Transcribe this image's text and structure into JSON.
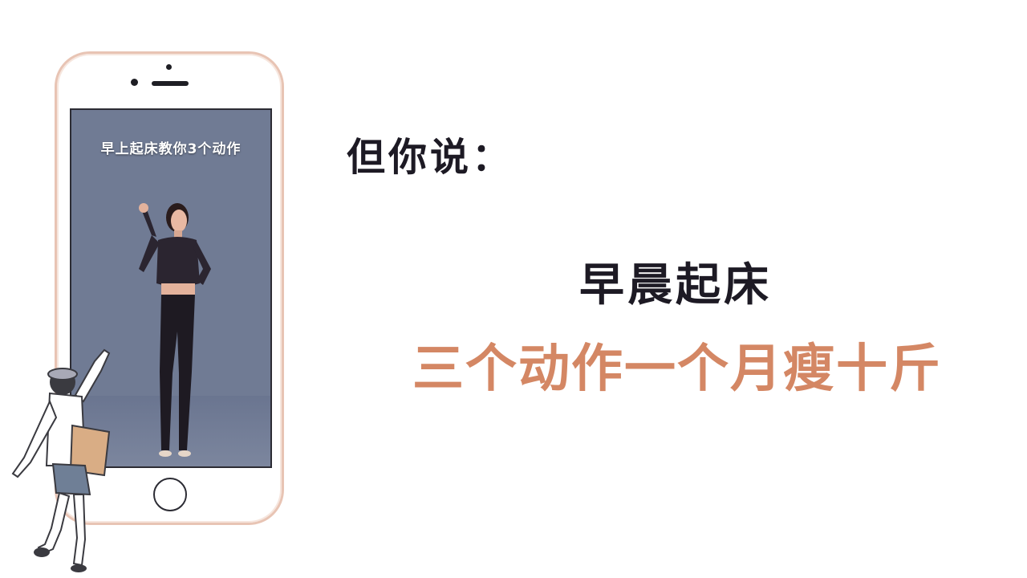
{
  "phone": {
    "screen_caption": "早上起床教你3个动作"
  },
  "text": {
    "headline": "但你说：",
    "line1": "早晨起床",
    "line2": "三个动作一个月瘦十斤"
  },
  "colors": {
    "background": "#ffffff",
    "dark_text": "#1d1a24",
    "accent_text": "#d48764",
    "screen_bg": "#707b94",
    "phone_border": "#e8c4b4"
  },
  "icons": {
    "home_button": "home-button-icon"
  }
}
